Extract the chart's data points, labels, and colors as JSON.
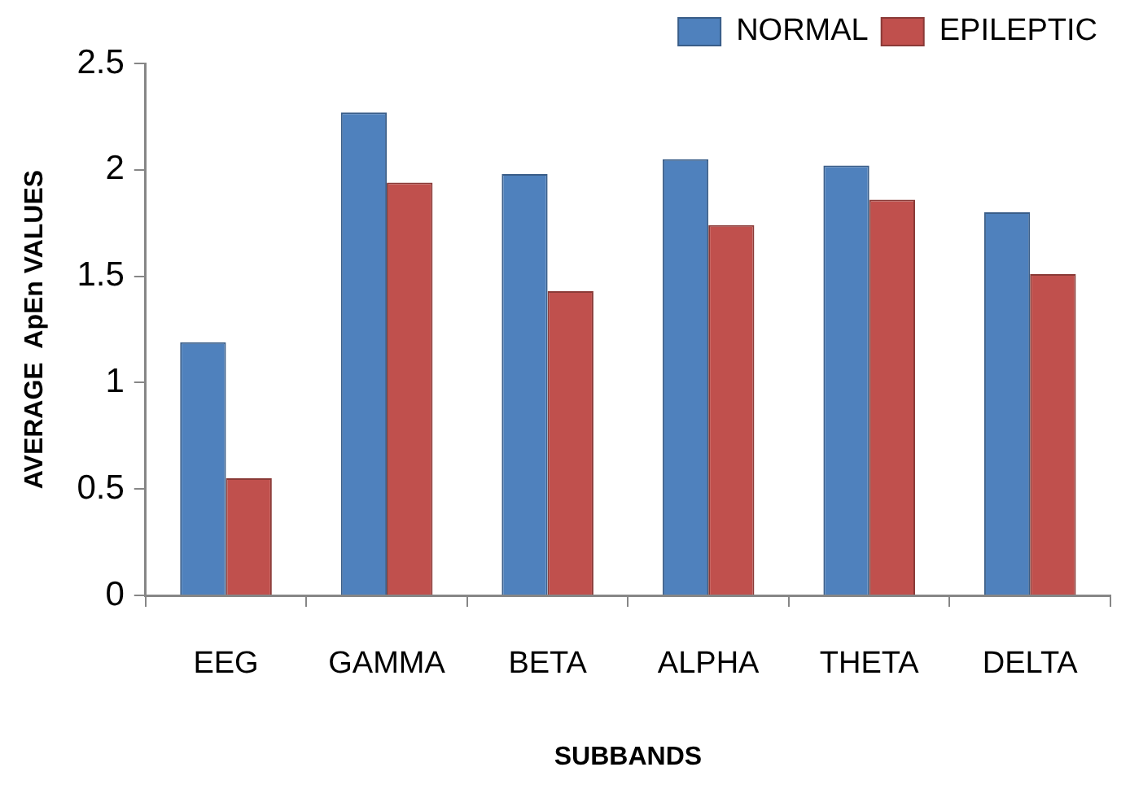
{
  "chart_data": {
    "type": "bar",
    "xlabel": "SUBBANDS",
    "ylabel": "AVERAGE  ApEn VALUES",
    "categories": [
      "EEG",
      "GAMMA",
      "BETA",
      "ALPHA",
      "THETA",
      "DELTA"
    ],
    "series": [
      {
        "name": "NORMAL",
        "color": "#4f81bd",
        "values": [
          1.19,
          2.27,
          1.98,
          2.05,
          2.02,
          1.8
        ]
      },
      {
        "name": "EPILEPTIC",
        "color": "#c0504d",
        "values": [
          0.55,
          1.94,
          1.43,
          1.74,
          1.86,
          1.51
        ]
      }
    ],
    "ylim": [
      0,
      2.5
    ],
    "yticks": [
      0,
      0.5,
      1,
      1.5,
      2,
      2.5
    ],
    "grid": false,
    "legend": "top right"
  }
}
